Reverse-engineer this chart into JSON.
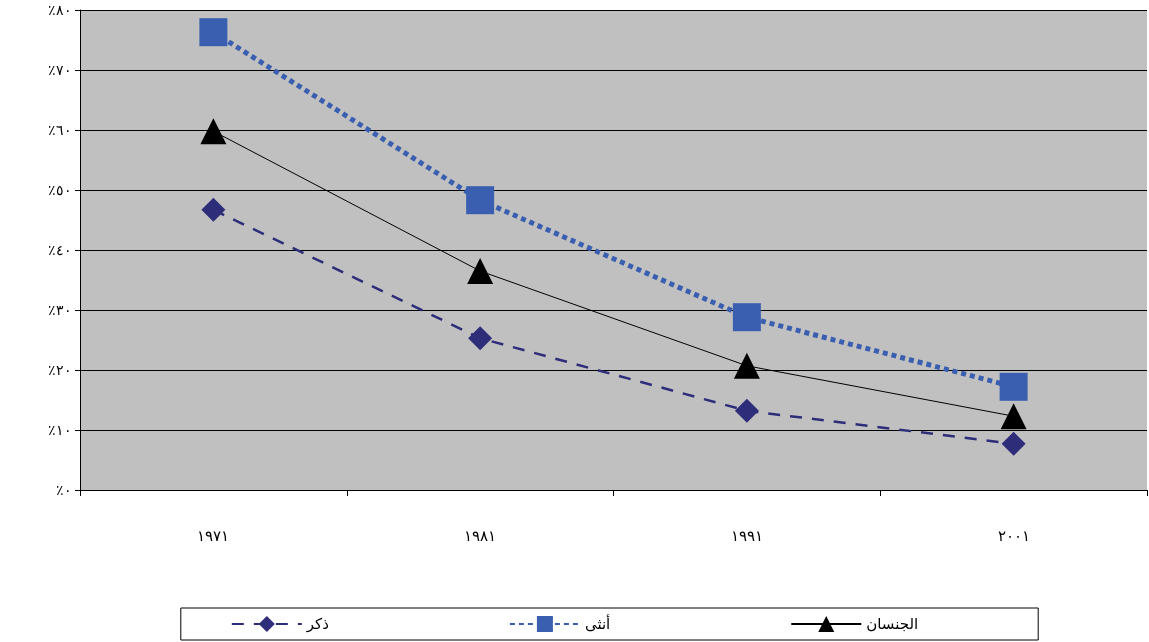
{
  "chart_data": {
    "type": "line",
    "categories": [
      "١٩٧١",
      "١٩٨١",
      "١٩٩١",
      "٢٠٠١"
    ],
    "series": [
      {
        "name": "ذكر",
        "color": "#2e2d7a",
        "values": [
          46.7,
          25.3,
          13.2,
          7.7
        ],
        "marker": "diamond",
        "line_style": "dashed"
      },
      {
        "name": "أنثى",
        "color": "#3a5fb0",
        "values": [
          76.3,
          48.3,
          28.8,
          17.2
        ],
        "marker": "square",
        "line_style": "dotted"
      },
      {
        "name": "الجنسان",
        "color": "#000000",
        "values": [
          59.8,
          36.5,
          20.7,
          12.3
        ],
        "marker": "triangle",
        "line_style": "solid"
      }
    ],
    "ylim": [
      0,
      80
    ],
    "yticks": [
      {
        "value": 0,
        "label": "٪٠"
      },
      {
        "value": 10,
        "label": "٪١٠"
      },
      {
        "value": 20,
        "label": "٪٢٠"
      },
      {
        "value": 30,
        "label": "٪٣٠"
      },
      {
        "value": 40,
        "label": "٪٤٠"
      },
      {
        "value": 50,
        "label": "٪٥٠"
      },
      {
        "value": 60,
        "label": "٪٦٠"
      },
      {
        "value": 70,
        "label": "٪٧٠"
      },
      {
        "value": 80,
        "label": "٪٨٠"
      }
    ],
    "grid": "y",
    "legend": "bottom"
  }
}
